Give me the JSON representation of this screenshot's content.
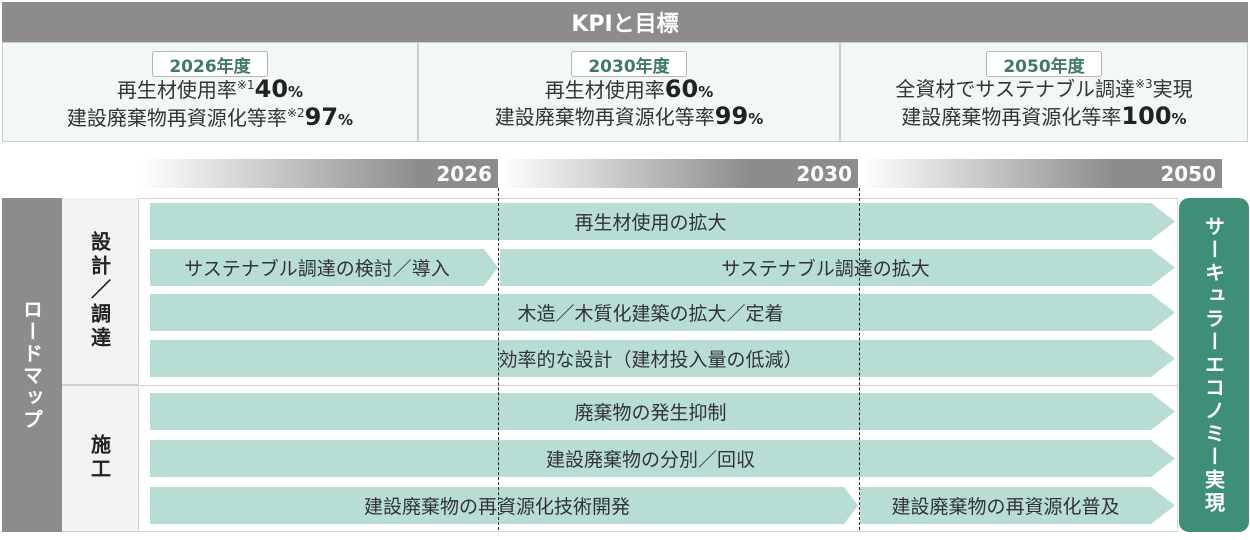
{
  "kpi": {
    "title": "KPIと目標",
    "panels": [
      {
        "year": "2026年度",
        "line1": {
          "label": "再生材使用率",
          "note": "※1",
          "value": "40",
          "unit": "%"
        },
        "line2": {
          "label": "建設廃棄物再資源化等率",
          "note": "※2",
          "value": "97",
          "unit": "%"
        }
      },
      {
        "year": "2030年度",
        "line1": {
          "label": "再生材使用率",
          "value": "60",
          "unit": "%"
        },
        "line2": {
          "label": "建設廃棄物再資源化等率",
          "value": "99",
          "unit": "%"
        }
      },
      {
        "year": "2050年度",
        "line1": {
          "label": "全資材でサステナブル調達",
          "note": "※3",
          "suffix": "実現"
        },
        "line2": {
          "label": "建設廃棄物再資源化等率",
          "value": "100",
          "unit": "%"
        }
      }
    ]
  },
  "timeline": [
    "2026",
    "2030",
    "2050"
  ],
  "roadmap": {
    "label": "ロードマップ",
    "categories": [
      {
        "label": "設計／調達",
        "bars": [
          "再生材使用の拡大",
          "サステナブル調達の検討／導入",
          "サステナブル調達の拡大",
          "木造／木質化建築の拡大／定着",
          "効率的な設計（建材投入量の低減）"
        ]
      },
      {
        "label": "施工",
        "bars": [
          "廃棄物の発生抑制",
          "建設廃棄物の分別／回収",
          "建設廃棄物の再資源化技術開発",
          "建設廃棄物の再資源化普及"
        ]
      }
    ]
  },
  "goal": "サーキュラーエコノミー実現",
  "colors": {
    "header_gray": "#8c8c8c",
    "bar_teal": "#b7ddd5",
    "goal_green": "#3f8f78",
    "panel_bg": "#f1f8f6",
    "badge_text": "#3f7a68"
  }
}
